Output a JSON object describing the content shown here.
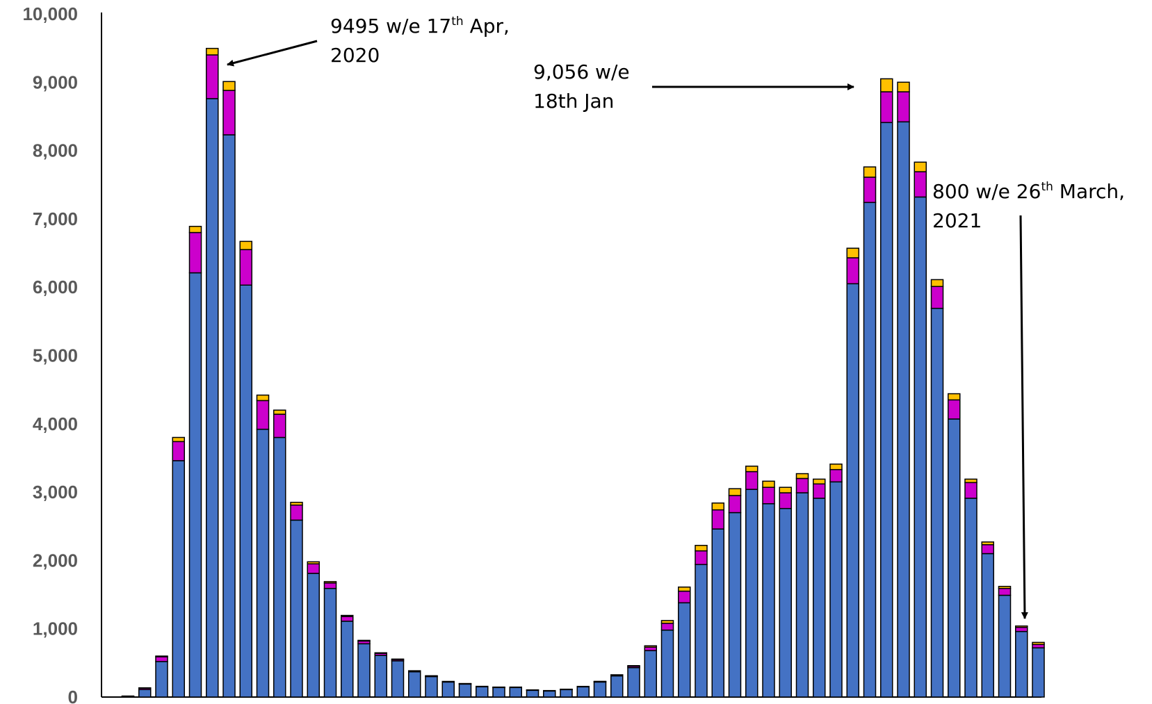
{
  "chart_data": {
    "type": "bar",
    "stacked": true,
    "grid": false,
    "ylim": [
      0,
      10000
    ],
    "yticks": [
      {
        "value": 0,
        "label": "0"
      },
      {
        "value": 1000,
        "label": "1,000"
      },
      {
        "value": 2000,
        "label": "2,000"
      },
      {
        "value": 3000,
        "label": "3,000"
      },
      {
        "value": 4000,
        "label": "4,000"
      },
      {
        "value": 5000,
        "label": "5,000"
      },
      {
        "value": 6000,
        "label": "6,000"
      },
      {
        "value": 7000,
        "label": "7,000"
      },
      {
        "value": 8000,
        "label": "8,000"
      },
      {
        "value": 9000,
        "label": "9,000"
      },
      {
        "value": 10000,
        "label": "10,000"
      }
    ],
    "series": [
      {
        "color": "#4472C4",
        "values": [
          10,
          110,
          520,
          3460,
          6210,
          8760,
          8230,
          6030,
          3920,
          3800,
          2590,
          1810,
          1590,
          1110,
          780,
          610,
          530,
          370,
          300,
          220,
          190,
          150,
          140,
          140,
          100,
          90,
          110,
          150,
          220,
          310,
          430,
          680,
          980,
          1380,
          1940,
          2460,
          2700,
          3040,
          2830,
          2760,
          2990,
          2910,
          3150,
          6050,
          7240,
          8410,
          8420,
          7320,
          5690,
          4070,
          2910,
          2100,
          1490,
          960,
          720
        ]
      },
      {
        "color": "#CC00CC",
        "values": [
          5,
          20,
          70,
          280,
          590,
          640,
          650,
          520,
          420,
          340,
          220,
          140,
          80,
          70,
          40,
          30,
          20,
          10,
          8,
          6,
          5,
          5,
          4,
          4,
          3,
          3,
          3,
          4,
          6,
          10,
          20,
          50,
          100,
          170,
          200,
          280,
          250,
          260,
          240,
          230,
          210,
          210,
          180,
          380,
          370,
          450,
          440,
          370,
          320,
          280,
          230,
          130,
          100,
          60,
          50
        ]
      },
      {
        "color": "#FFC000",
        "values": [
          0,
          5,
          10,
          60,
          90,
          95,
          130,
          120,
          80,
          60,
          40,
          30,
          20,
          15,
          10,
          8,
          6,
          5,
          4,
          3,
          3,
          2,
          2,
          2,
          2,
          2,
          2,
          2,
          4,
          6,
          10,
          20,
          40,
          60,
          80,
          100,
          100,
          80,
          90,
          80,
          70,
          70,
          80,
          140,
          150,
          190,
          140,
          140,
          100,
          90,
          50,
          40,
          30,
          20,
          30
        ]
      }
    ],
    "annotations": [
      {
        "text_main": "9495 w/e 17",
        "text_sup": "th",
        "text_rest": " Apr,",
        "text_line2": "2020"
      },
      {
        "text_line1": "9,056 w/e",
        "text_line2": "18th Jan"
      },
      {
        "text_main": "800 w/e 26",
        "text_sup": "th",
        "text_rest": " March,",
        "text_line2": "2021"
      }
    ]
  }
}
